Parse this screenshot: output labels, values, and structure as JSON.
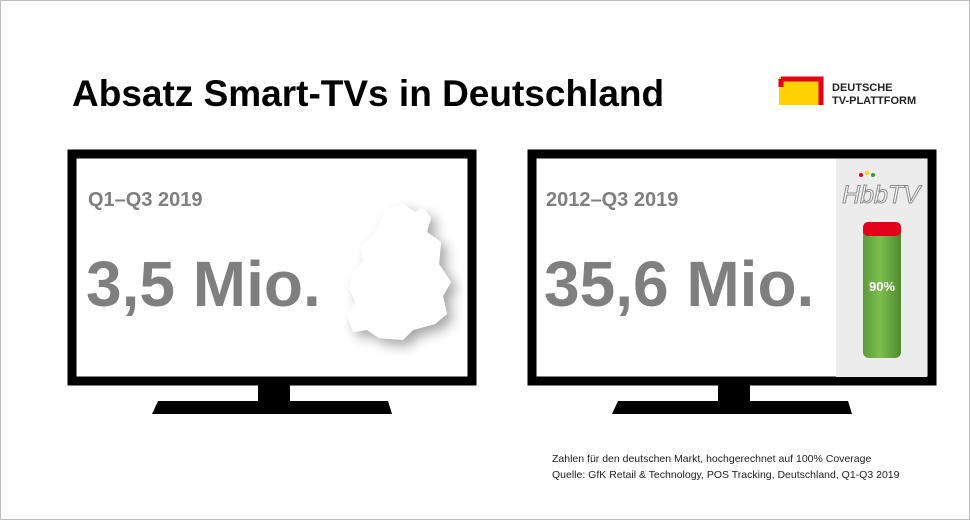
{
  "header": {
    "title": "Absatz Smart-TVs in Deutschland",
    "logo_line1": "DEUTSCHE",
    "logo_line2": "TV-PLATTFORM"
  },
  "tvs": [
    {
      "period": "Q1–Q3 2019",
      "value": "3,5 Mio."
    },
    {
      "period": "2012–Q3 2019",
      "value": "35,6 Mio.",
      "badge": "HbbTV",
      "share": "90%"
    }
  ],
  "footnote": {
    "line1": "Zahlen für den deutschen Markt, hochgerechnet auf 100% Coverage",
    "line2": "Quelle: GfK Retail & Technology, POS Tracking, Deutschland, Q1-Q3 2019"
  }
}
